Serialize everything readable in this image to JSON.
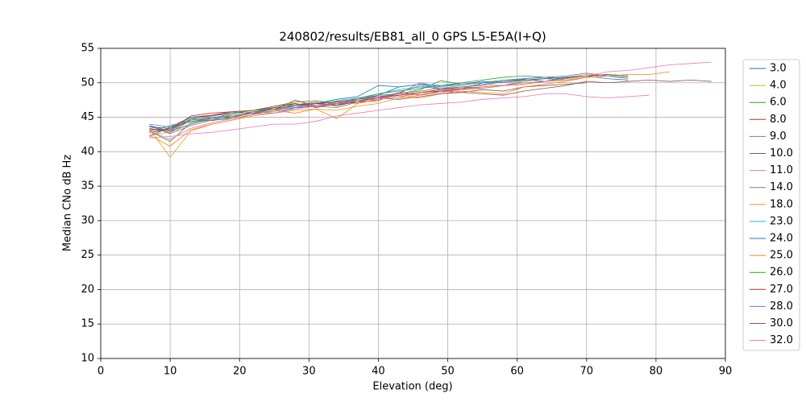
{
  "chart_data": {
    "type": "line",
    "title": "240802/results/EB81_all_0 GPS L5-E5A(I+Q)",
    "xlabel": "Elevation (deg)",
    "ylabel": "Median CNo dB Hz",
    "xlim": [
      0,
      90
    ],
    "ylim": [
      10,
      55
    ],
    "xticks": [
      0,
      10,
      20,
      30,
      40,
      50,
      60,
      70,
      80,
      90
    ],
    "yticks": [
      10,
      15,
      20,
      25,
      30,
      35,
      40,
      45,
      50,
      55
    ],
    "grid": true,
    "legend": "outside right",
    "x": [
      7,
      10,
      13,
      16,
      19,
      22,
      25,
      28,
      31,
      34,
      37,
      40,
      43,
      46,
      49,
      52,
      55,
      58,
      61,
      64,
      67,
      70,
      73,
      76,
      79,
      82,
      85,
      88
    ],
    "series": [
      {
        "name": "3.0",
        "color": "#1f77b4",
        "values": [
          43.8,
          43.0,
          44.8,
          44.5,
          45.0,
          45.8,
          46.2,
          46.4,
          47.0,
          46.8,
          47.6,
          48.2,
          49.4,
          49.8,
          49.2,
          49.0,
          50.0,
          50.2,
          50.5,
          50.2,
          50.8,
          51.0,
          50.6,
          50.4,
          null,
          null,
          null,
          null
        ]
      },
      {
        "name": "4.0",
        "color": "#bcbd22",
        "values": [
          42.5,
          42.8,
          44.0,
          44.8,
          45.4,
          45.8,
          45.8,
          46.8,
          46.6,
          47.2,
          47.0,
          47.6,
          48.0,
          48.6,
          48.8,
          49.2,
          49.8,
          49.6,
          50.4,
          50.6,
          50.8,
          51.2,
          51.0,
          null,
          null,
          null,
          null,
          null
        ]
      },
      {
        "name": "6.0",
        "color": "#2ca02c",
        "values": [
          43.0,
          41.5,
          44.2,
          44.6,
          45.0,
          45.8,
          46.2,
          47.0,
          46.5,
          47.3,
          47.6,
          48.0,
          48.4,
          49.0,
          50.3,
          49.8,
          50.0,
          50.4,
          50.6,
          50.8,
          50.7,
          51.0,
          51.2,
          51.0,
          null,
          null,
          null,
          null
        ]
      },
      {
        "name": "8.0",
        "color": "#d62728",
        "values": [
          42.2,
          43.6,
          45.0,
          45.3,
          45.8,
          45.5,
          46.0,
          47.5,
          46.6,
          46.8,
          47.2,
          47.4,
          48.6,
          48.2,
          48.8,
          49.0,
          49.2,
          49.6,
          49.8,
          50.2,
          50.4,
          50.8,
          51.0,
          null,
          null,
          null,
          null,
          null
        ]
      },
      {
        "name": "9.0",
        "color": "#9467bd",
        "values": [
          43.8,
          42.6,
          43.8,
          44.6,
          44.8,
          45.4,
          46.0,
          46.2,
          46.8,
          47.0,
          47.2,
          47.8,
          48.6,
          49.6,
          49.0,
          49.4,
          49.6,
          50.2,
          50.4,
          50.6,
          50.8,
          51.0,
          51.2,
          51.0,
          null,
          null,
          null,
          null
        ]
      },
      {
        "name": "10.0",
        "color": "#8c564b",
        "values": [
          43.4,
          42.8,
          44.6,
          45.0,
          45.0,
          45.6,
          46.4,
          46.8,
          47.2,
          46.6,
          47.4,
          48.0,
          48.2,
          48.6,
          48.8,
          48.6,
          49.0,
          48.8,
          49.4,
          49.6,
          49.8,
          50.0,
          null,
          null,
          null,
          null,
          null,
          null
        ]
      },
      {
        "name": "11.0",
        "color": "#e377c2",
        "values": [
          42.0,
          42.2,
          42.6,
          42.8,
          43.2,
          43.6,
          44.0,
          44.0,
          44.4,
          45.2,
          45.6,
          46.0,
          46.4,
          46.8,
          47.0,
          47.2,
          47.6,
          47.8,
          48.0,
          48.4,
          48.4,
          48.0,
          47.8,
          48.0,
          48.2,
          null,
          null,
          null
        ]
      },
      {
        "name": "14.0",
        "color": "#7f7f7f",
        "values": [
          44.0,
          43.6,
          44.4,
          44.6,
          45.4,
          45.8,
          45.6,
          46.4,
          46.6,
          46.4,
          47.2,
          48.2,
          48.4,
          48.8,
          49.2,
          49.4,
          49.2,
          49.6,
          50.2,
          50.6,
          50.4,
          50.8,
          51.0,
          50.6,
          null,
          null,
          null,
          null
        ]
      },
      {
        "name": "18.0",
        "color": "#e0a020",
        "values": [
          43.4,
          39.2,
          43.0,
          44.0,
          44.6,
          45.2,
          45.6,
          46.0,
          46.2,
          46.0,
          46.6,
          47.0,
          47.8,
          48.2,
          48.6,
          49.0,
          49.2,
          49.6,
          50.0,
          50.2,
          50.4,
          50.8,
          51.0,
          null,
          null,
          null,
          null,
          null
        ]
      },
      {
        "name": "23.0",
        "color": "#17becf",
        "values": [
          43.0,
          43.8,
          44.6,
          44.8,
          45.2,
          45.6,
          46.0,
          46.8,
          47.0,
          47.4,
          47.8,
          48.4,
          49.0,
          49.4,
          49.2,
          49.6,
          49.8,
          50.2,
          50.6,
          50.8,
          50.6,
          51.0,
          null,
          null,
          null,
          null,
          null,
          null
        ]
      },
      {
        "name": "24.0",
        "color": "#1f77b4",
        "values": [
          43.6,
          43.4,
          45.0,
          45.2,
          45.6,
          46.0,
          46.2,
          46.6,
          47.0,
          47.6,
          48.0,
          49.6,
          49.4,
          49.8,
          49.6,
          49.8,
          50.2,
          50.0,
          50.4,
          50.6,
          50.8,
          51.0,
          51.2,
          null,
          null,
          null,
          null,
          null
        ]
      },
      {
        "name": "25.0",
        "color": "#ff7f0e",
        "values": [
          42.4,
          40.8,
          43.2,
          44.0,
          44.6,
          45.4,
          46.0,
          45.6,
          46.2,
          44.8,
          47.0,
          47.6,
          48.0,
          47.8,
          48.4,
          48.8,
          48.6,
          48.4,
          49.4,
          49.8,
          50.2,
          50.8,
          51.0,
          51.2,
          51.2,
          51.6,
          null,
          null
        ]
      },
      {
        "name": "26.0",
        "color": "#2ca02c",
        "values": [
          42.8,
          43.4,
          44.4,
          44.8,
          45.6,
          46.0,
          46.6,
          47.2,
          47.4,
          47.0,
          47.6,
          48.4,
          48.8,
          49.2,
          49.6,
          50.0,
          50.4,
          50.8,
          51.0,
          50.8,
          50.6,
          51.0,
          51.2,
          51.0,
          null,
          null,
          null,
          null
        ]
      },
      {
        "name": "27.0",
        "color": "#d62728",
        "values": [
          43.2,
          43.2,
          45.2,
          45.6,
          45.8,
          46.0,
          46.4,
          46.8,
          47.0,
          47.2,
          47.4,
          47.8,
          48.2,
          48.6,
          49.0,
          49.2,
          49.4,
          49.6,
          49.8,
          50.2,
          50.6,
          51.0,
          51.2,
          null,
          null,
          null,
          null,
          null
        ]
      },
      {
        "name": "28.0",
        "color": "#9467bd",
        "values": [
          43.6,
          43.0,
          44.0,
          45.0,
          45.2,
          45.6,
          46.2,
          46.4,
          46.6,
          47.0,
          47.8,
          48.0,
          48.4,
          50.0,
          49.4,
          49.8,
          50.0,
          50.2,
          50.6,
          50.8,
          51.0,
          51.4,
          51.0,
          50.8,
          null,
          null,
          null,
          null
        ]
      },
      {
        "name": "30.0",
        "color": "#8c564b",
        "values": [
          42.8,
          43.2,
          44.8,
          45.2,
          45.8,
          46.0,
          46.6,
          47.0,
          46.4,
          47.0,
          47.2,
          47.8,
          47.6,
          48.0,
          48.4,
          48.6,
          48.4,
          48.2,
          48.8,
          49.2,
          49.6,
          50.2,
          50.0,
          50.2,
          50.4,
          50.2,
          50.4,
          50.2
        ]
      },
      {
        "name": "32.0",
        "color": "#e377c2",
        "values": [
          43.0,
          41.8,
          43.4,
          44.2,
          44.8,
          45.4,
          45.6,
          46.2,
          46.6,
          47.0,
          47.4,
          47.6,
          48.0,
          48.4,
          48.6,
          49.0,
          49.4,
          49.6,
          49.8,
          50.2,
          50.6,
          51.0,
          51.6,
          51.8,
          52.2,
          52.6,
          52.8,
          53.0
        ]
      }
    ]
  }
}
